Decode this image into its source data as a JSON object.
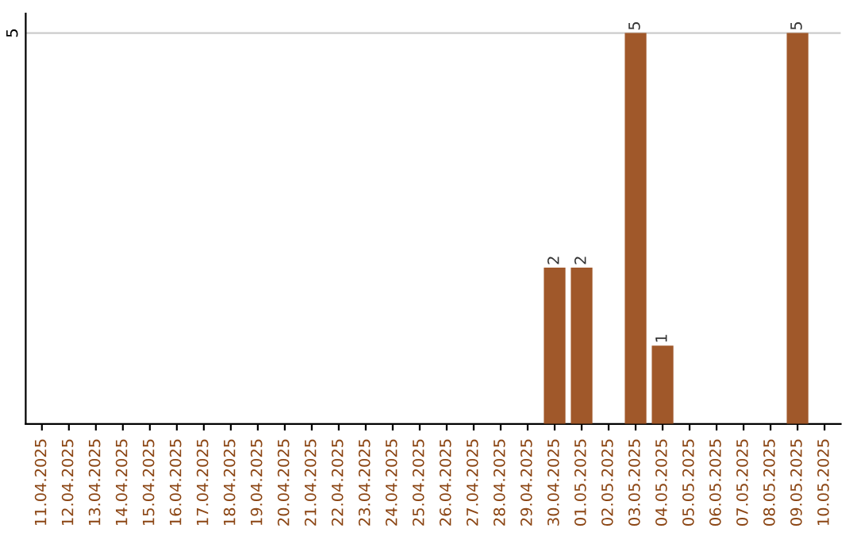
{
  "chart_data": {
    "type": "bar",
    "categories": [
      "11.04.2025",
      "12.04.2025",
      "13.04.2025",
      "14.04.2025",
      "15.04.2025",
      "16.04.2025",
      "17.04.2025",
      "18.04.2025",
      "19.04.2025",
      "20.04.2025",
      "21.04.2025",
      "22.04.2025",
      "23.04.2025",
      "24.04.2025",
      "25.04.2025",
      "26.04.2025",
      "27.04.2025",
      "28.04.2025",
      "29.04.2025",
      "30.04.2025",
      "01.05.2025",
      "02.05.2025",
      "03.05.2025",
      "04.05.2025",
      "05.05.2025",
      "06.05.2025",
      "07.05.2025",
      "08.05.2025",
      "09.05.2025",
      "10.05.2025"
    ],
    "values": [
      null,
      null,
      null,
      null,
      null,
      null,
      null,
      null,
      null,
      null,
      null,
      null,
      null,
      null,
      null,
      null,
      null,
      null,
      null,
      2,
      2,
      null,
      5,
      1,
      null,
      null,
      null,
      null,
      5,
      null
    ],
    "value_labels": [
      null,
      null,
      null,
      null,
      null,
      null,
      null,
      null,
      null,
      null,
      null,
      null,
      null,
      null,
      null,
      null,
      null,
      null,
      null,
      "2",
      "2",
      null,
      "5",
      "1",
      null,
      null,
      null,
      null,
      "5",
      null
    ],
    "color": "#a0582a",
    "ref_lines": [
      {
        "axis": "y",
        "value": 5,
        "label": "5",
        "color": "#cccccc"
      }
    ]
  }
}
